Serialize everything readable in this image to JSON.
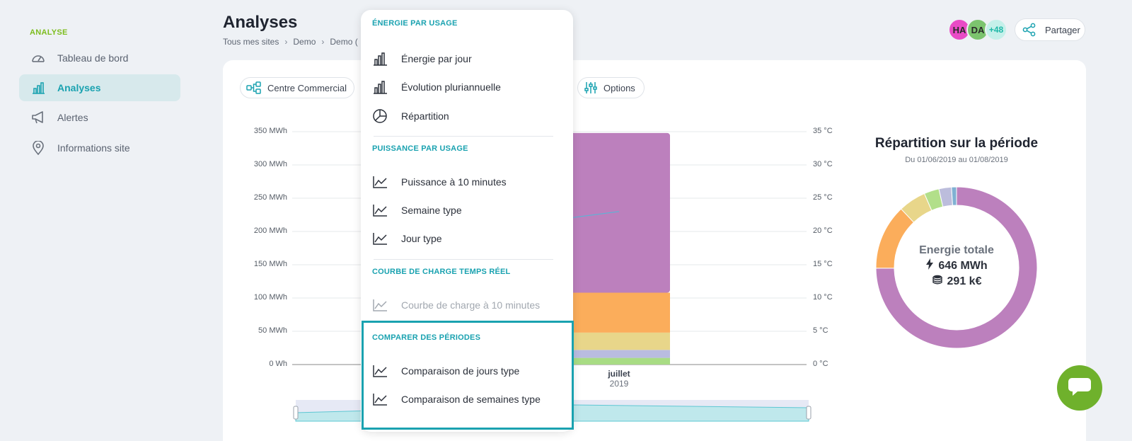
{
  "sidebar": {
    "section_label": "ANALYSE",
    "items": [
      {
        "label": "Tableau de bord",
        "icon": "gauge-icon"
      },
      {
        "label": "Analyses",
        "icon": "bar-chart-icon",
        "active": true
      },
      {
        "label": "Alertes",
        "icon": "megaphone-icon"
      },
      {
        "label": "Informations site",
        "icon": "location-pin-icon"
      }
    ]
  },
  "header": {
    "title": "Analyses",
    "breadcrumb": [
      "Tous mes sites",
      "Demo",
      "Demo ("
    ],
    "avatars": [
      {
        "initials": "HA",
        "color": "#e94bc6"
      },
      {
        "initials": "DA",
        "color": "#7cc46e"
      },
      {
        "initials": "+48",
        "color": "#c5f0ea"
      }
    ],
    "share_label": "Partager"
  },
  "toolbar": {
    "site_label": "Centre Commercial",
    "options_label": "Options"
  },
  "chart_data": {
    "type": "bar",
    "categories": [
      "juillet 2019"
    ],
    "x_tick_label": {
      "month": "juillet",
      "year": "2019"
    },
    "y_left_ticks": [
      "0 Wh",
      "50 MWh",
      "100 MWh",
      "150 MWh",
      "200 MWh",
      "250 MWh",
      "300 MWh",
      "350 MWh"
    ],
    "y_right_ticks": [
      "0 °C",
      "5 °C",
      "10 °C",
      "15 °C",
      "20 °C",
      "25 °C",
      "30 °C",
      "35 °C"
    ],
    "ylim": [
      0,
      350
    ],
    "y2lim": [
      0,
      35
    ],
    "series": [
      {
        "color": "#a8dc84",
        "values": [
          10
        ]
      },
      {
        "color": "#b9bce0",
        "values": [
          12
        ]
      },
      {
        "color": "#e8d68a",
        "values": [
          26
        ]
      },
      {
        "color": "#fbad5b",
        "values": [
          60
        ]
      },
      {
        "color": "#bc80bd",
        "values": [
          240
        ]
      }
    ],
    "temperature_line_visible": {
      "color": "#5bb4d6",
      "x_fraction": [
        0,
        0.5
      ],
      "values": [
        22,
        23
      ]
    }
  },
  "donut": {
    "title": "Répartition sur la période",
    "subtitle": "Du 01/06/2019 au 01/08/2019",
    "center_label": "Energie totale",
    "energy_value": "646 MWh",
    "cost_value": "291 k€",
    "slices": [
      {
        "color": "#bc80bd",
        "value": 74.5
      },
      {
        "color": "#fbad5b",
        "value": 13
      },
      {
        "color": "#e8d68a",
        "value": 5.5
      },
      {
        "color": "#b2df8a",
        "value": 3
      },
      {
        "color": "#bcbddc",
        "value": 2.5
      },
      {
        "color": "#80b1d3",
        "value": 1
      }
    ]
  },
  "menu": {
    "sections": [
      {
        "title": "ÉNERGIE PAR USAGE",
        "items": [
          {
            "label": "Énergie par jour",
            "icon": "bar-chart-icon"
          },
          {
            "label": "Évolution pluriannuelle",
            "icon": "bar-chart-icon"
          },
          {
            "label": "Répartition",
            "icon": "pie-chart-icon"
          }
        ]
      },
      {
        "title": "PUISSANCE PAR USAGE",
        "items": [
          {
            "label": "Puissance à 10 minutes",
            "icon": "line-chart-icon"
          },
          {
            "label": "Semaine type",
            "icon": "line-chart-icon"
          },
          {
            "label": "Jour type",
            "icon": "line-chart-icon"
          }
        ]
      },
      {
        "title": "COURBE DE CHARGE TEMPS RÉEL",
        "items": [
          {
            "label": "Courbe de charge à 10 minutes",
            "icon": "line-chart-icon",
            "disabled": true
          }
        ]
      },
      {
        "title": "COMPARER DES PÉRIODES",
        "items": [
          {
            "label": "Comparaison de jours type",
            "icon": "line-chart-icon"
          },
          {
            "label": "Comparaison de semaines type",
            "icon": "line-chart-icon"
          }
        ]
      }
    ]
  },
  "colors": {
    "accent": "#1aa2b0",
    "brand_green": "#7dbd1e",
    "chat": "#6fb12c"
  }
}
